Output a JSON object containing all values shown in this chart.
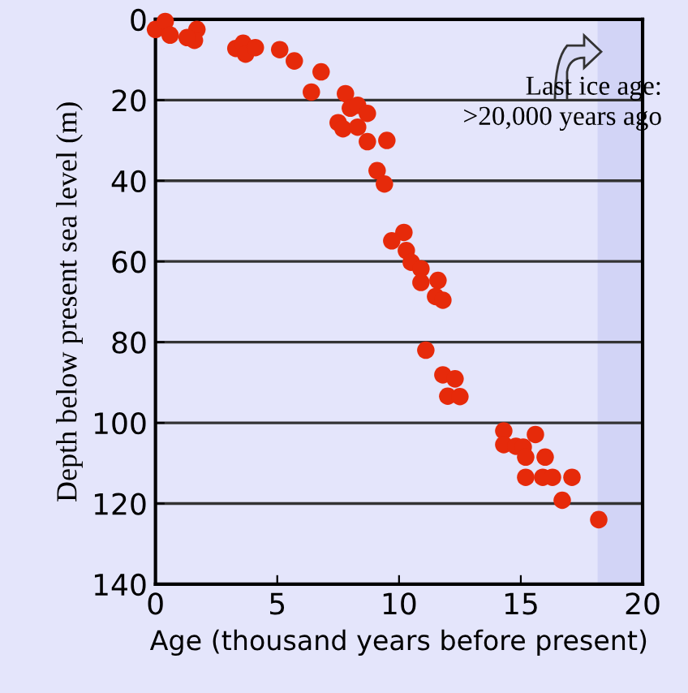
{
  "chart_data": {
    "type": "scatter",
    "xlabel": "Age (thousand years before present)",
    "ylabel": "Depth below present sea level (m)",
    "x": [
      0,
      0.4,
      0.6,
      1.7,
      1.6,
      1.3,
      3.3,
      3.6,
      3.7,
      4.1,
      5.1,
      5.7,
      6.8,
      6.4,
      7.8,
      8,
      8.3,
      8.7,
      7.5,
      7.7,
      8.3,
      8.7,
      9.5,
      9.1,
      9.4,
      10.2,
      9.7,
      10.3,
      10.5,
      10.9,
      10.9,
      11.6,
      11.5,
      11.8,
      11.1,
      11.8,
      12.3,
      12,
      12.5,
      14.3,
      14.3,
      14.8,
      15.6,
      15.1,
      15.2,
      16,
      15.2,
      15.9,
      16.3,
      17.1,
      16.7,
      18.2
    ],
    "series": [
      {
        "color": "#e62a0a",
        "values": [
          2.5,
          0.5,
          3.9,
          2.5,
          5.2,
          4.5,
          7.2,
          5.9,
          8.6,
          7,
          7.5,
          10.3,
          13,
          18,
          18.4,
          22,
          21.3,
          23.3,
          25.6,
          27.1,
          26.7,
          30.3,
          30,
          37.5,
          40.8,
          52.8,
          54.9,
          57.3,
          60.2,
          61.8,
          65.2,
          64.7,
          68.7,
          69.6,
          82,
          88.1,
          89.1,
          93.4,
          93.5,
          102,
          105.4,
          105.8,
          102.9,
          106,
          108.5,
          108.5,
          113.5,
          113.5,
          113.5,
          113.5,
          119.2,
          124
        ]
      }
    ],
    "xlim": [
      0,
      20
    ],
    "xticks": [
      0,
      5,
      10,
      15,
      20
    ],
    "ylim": [
      140,
      0
    ],
    "yticks": [
      0,
      20,
      40,
      60,
      80,
      100,
      120,
      140
    ],
    "grid": "y",
    "marker": "circle",
    "bands": [
      {
        "axis": "x",
        "from": 18.2,
        "to": 20,
        "color": "#d2d4f6"
      }
    ],
    "annotations": [
      "Last ice age:\n>20,000 years ago"
    ]
  }
}
